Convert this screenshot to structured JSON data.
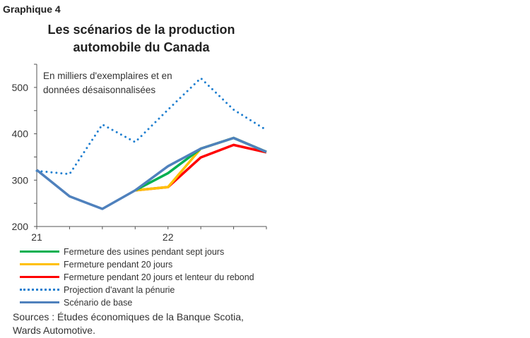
{
  "figure_label": "Graphique 4",
  "chart_data": {
    "type": "line",
    "title": "Les scénarios de la production automobile du Canada",
    "annotation": "En milliers d'exemplaires et en données désaisonnalisées",
    "x_tick_labels": [
      "21",
      "",
      "",
      "",
      "22",
      "",
      "",
      ""
    ],
    "y_ticks": [
      200,
      300,
      400,
      500
    ],
    "ylim": [
      200,
      550
    ],
    "series": [
      {
        "name": "Projection d'avant la pénurie",
        "color": "#1f7fd0",
        "style": "dotted",
        "values": [
          320,
          313,
          420,
          382,
          452,
          520,
          452,
          408
        ]
      },
      {
        "name": "Fermeture pendant 20 jours et lenteur du rebond",
        "color": "#ff0000",
        "style": "solid",
        "values": [
          null,
          null,
          null,
          278,
          285,
          349,
          376,
          360
        ]
      },
      {
        "name": "Fermeture pendant 20 jours",
        "color": "#ffc000",
        "style": "solid",
        "values": [
          null,
          null,
          null,
          278,
          285,
          368,
          391,
          361
        ]
      },
      {
        "name": "Fermeture des usines pendant sept jours",
        "color": "#00b050",
        "style": "solid",
        "values": [
          null,
          null,
          null,
          278,
          315,
          368,
          391,
          361
        ]
      },
      {
        "name": "Scénario de base",
        "color": "#4f81bd",
        "style": "solid",
        "values": [
          322,
          265,
          238,
          278,
          330,
          368,
          391,
          361
        ]
      }
    ],
    "legend_order": [
      3,
      2,
      1,
      0,
      4
    ],
    "legend_placement": "bottom"
  },
  "sources": "Sources : Études économiques de la Banque Scotia, Wards Automotive."
}
